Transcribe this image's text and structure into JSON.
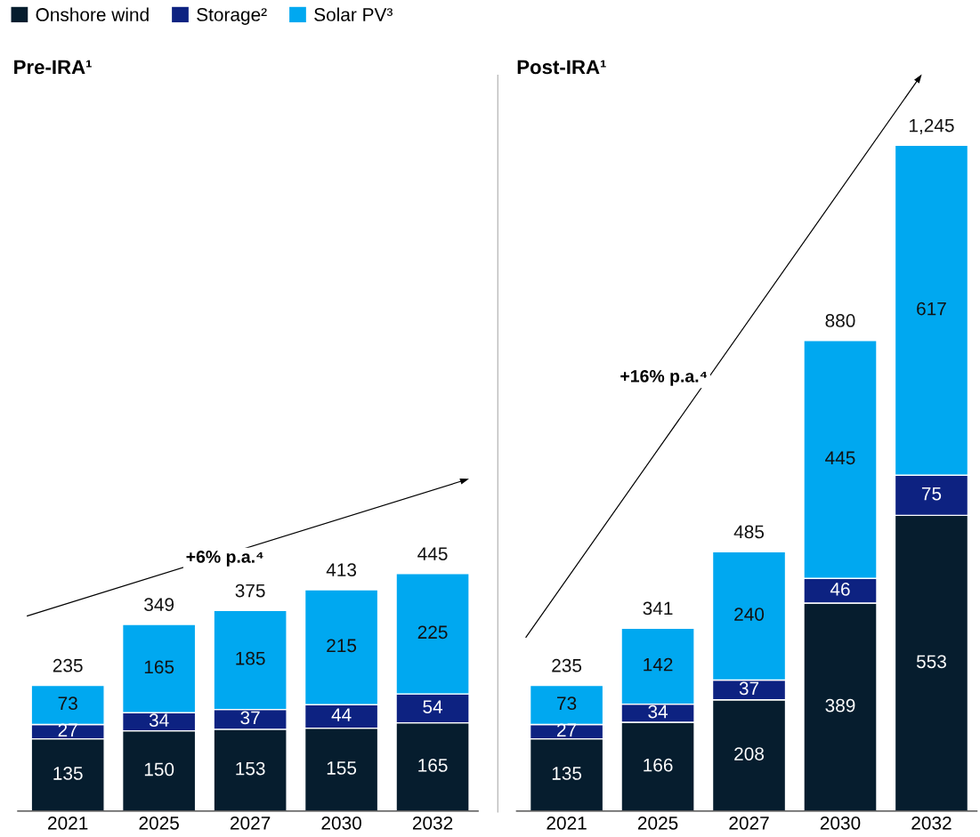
{
  "chart_data": [
    {
      "type": "bar",
      "title": "Pre-IRA¹",
      "categories": [
        "2021",
        "2025",
        "2027",
        "2030",
        "2032"
      ],
      "stacked": true,
      "data_labels": true,
      "legend": "top left",
      "tick_labels": "x",
      "series": [
        {
          "name": "Onshore wind",
          "color": "#061d2e",
          "values": [
            135,
            150,
            153,
            155,
            165
          ]
        },
        {
          "name": "Storage²",
          "color": "#0d2281",
          "values": [
            27,
            34,
            37,
            44,
            54
          ]
        },
        {
          "name": "Solar PV³",
          "color": "#00a8f0",
          "values": [
            73,
            165,
            185,
            215,
            225
          ]
        }
      ],
      "totals": [
        "235",
        "349",
        "375",
        "413",
        "445"
      ],
      "annotations": [
        "+6% p.a.⁴"
      ]
    },
    {
      "type": "bar",
      "title": "Post-IRA¹",
      "categories": [
        "2021",
        "2025",
        "2027",
        "2030",
        "2032"
      ],
      "stacked": true,
      "data_labels": true,
      "tick_labels": "x",
      "series": [
        {
          "color": "#061d2e",
          "values": [
            135,
            166,
            208,
            389,
            553
          ]
        },
        {
          "color": "#0d2281",
          "values": [
            27,
            34,
            37,
            46,
            75
          ]
        },
        {
          "color": "#00a8f0",
          "values": [
            73,
            142,
            240,
            445,
            617
          ]
        }
      ],
      "totals": [
        "235",
        "341",
        "485",
        "880",
        "1,245"
      ],
      "annotations": [
        "+16% p.a.⁴"
      ]
    }
  ]
}
